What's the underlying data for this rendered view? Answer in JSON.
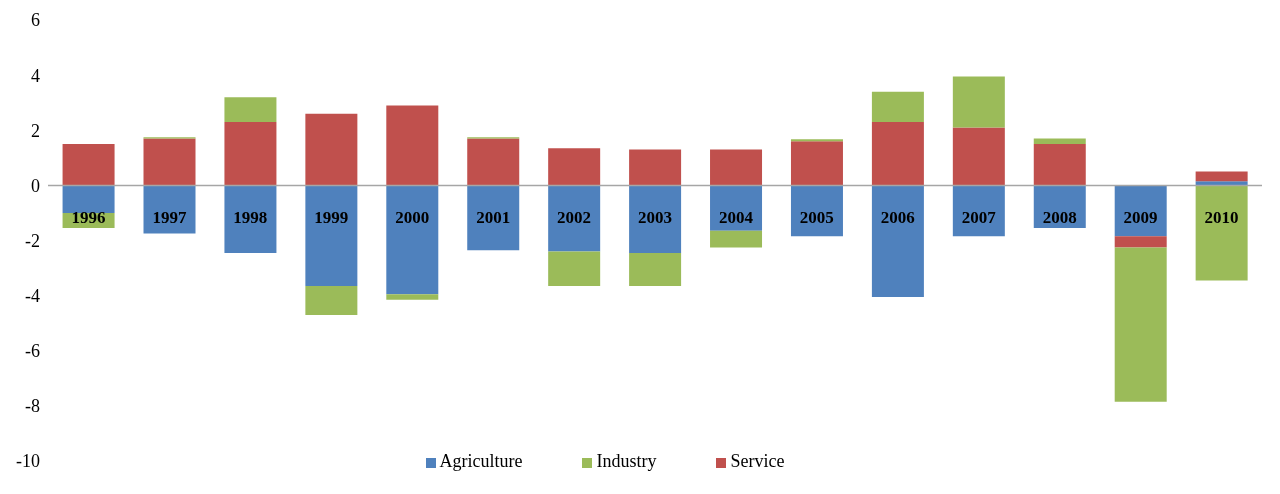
{
  "chart_data": {
    "type": "bar",
    "stacked": true,
    "categories": [
      "1996",
      "1997",
      "1998",
      "1999",
      "2000",
      "2001",
      "2002",
      "2003",
      "2004",
      "2005",
      "2006",
      "2007",
      "2008",
      "2009",
      "2010"
    ],
    "series": [
      {
        "name": "Agriculture",
        "color": "#4f81bd",
        "values": [
          -1.0,
          -1.75,
          -2.45,
          -3.65,
          -3.95,
          -2.35,
          -2.4,
          -2.45,
          -1.65,
          -1.85,
          -4.05,
          -1.85,
          -1.55,
          -1.85,
          0.15
        ]
      },
      {
        "name": "Service",
        "color": "#c0504d",
        "values": [
          1.5,
          1.7,
          2.3,
          2.6,
          2.9,
          1.7,
          1.35,
          1.3,
          1.3,
          1.6,
          2.3,
          2.1,
          1.5,
          -0.4,
          0.35
        ]
      },
      {
        "name": "Industry",
        "color": "#9bbb59",
        "values": [
          -0.55,
          0.05,
          0.9,
          -1.05,
          -0.2,
          0.05,
          -1.25,
          -1.2,
          -0.6,
          0.07,
          1.1,
          1.85,
          0.2,
          -5.6,
          -3.45
        ]
      }
    ],
    "ylim": [
      -10,
      6
    ],
    "yticks": [
      -10,
      -8,
      -6,
      -4,
      -2,
      0,
      2,
      4,
      6
    ],
    "grid": false,
    "legend": "bottom"
  }
}
